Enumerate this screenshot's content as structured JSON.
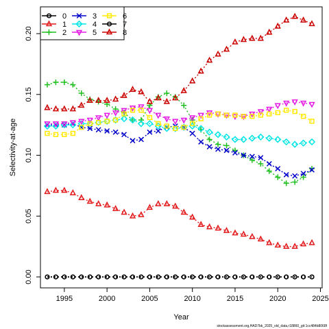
{
  "chart_data": {
    "type": "line",
    "xlabel": "Year",
    "ylabel": "Selectivity-at-age",
    "xlim": [
      1992.2,
      2025.2
    ],
    "ylim": [
      -0.009,
      0.222
    ],
    "x_ticks": [
      1995,
      2000,
      2005,
      2010,
      2015,
      2020,
      2025
    ],
    "x_tick_labels": [
      "1995",
      "2000",
      "2005",
      "2010",
      "2015",
      "2020",
      "2025"
    ],
    "y_ticks": [
      0.0,
      0.05,
      0.1,
      0.15,
      0.2
    ],
    "y_tick_labels": [
      "0.00",
      "0.05",
      "0.10",
      "0.15",
      "0.20"
    ],
    "legend_position": "top-left",
    "grid": false,
    "x": [
      1993,
      1994,
      1995,
      1996,
      1997,
      1998,
      1999,
      2000,
      2001,
      2002,
      2003,
      2004,
      2005,
      2006,
      2007,
      2008,
      2009,
      2010,
      2011,
      2012,
      2013,
      2014,
      2015,
      2016,
      2017,
      2018,
      2019,
      2020,
      2021,
      2022,
      2023,
      2024
    ],
    "series": [
      {
        "name": "0",
        "color": "#000000",
        "marker": "circle",
        "values": [
          0,
          0,
          0,
          0,
          0,
          0,
          0,
          0,
          0,
          0,
          0,
          0,
          0,
          0,
          0,
          0,
          0,
          0,
          0,
          0,
          0,
          0,
          0,
          0,
          0,
          0,
          0,
          0,
          0,
          0,
          0,
          0
        ]
      },
      {
        "name": "1",
        "color": "#e31a1c",
        "marker": "triangle-up",
        "values": [
          0.07,
          0.071,
          0.071,
          0.069,
          0.065,
          0.062,
          0.06,
          0.059,
          0.056,
          0.053,
          0.05,
          0.051,
          0.057,
          0.06,
          0.06,
          0.058,
          0.053,
          0.049,
          0.043,
          0.041,
          0.04,
          0.038,
          0.036,
          0.035,
          0.033,
          0.031,
          0.028,
          0.026,
          0.025,
          0.025,
          0.027,
          0.028
        ]
      },
      {
        "name": "2",
        "color": "#1fbf1f",
        "marker": "plus",
        "values": [
          0.158,
          0.16,
          0.16,
          0.158,
          0.151,
          0.146,
          0.144,
          0.142,
          0.138,
          0.135,
          0.129,
          0.129,
          0.141,
          0.148,
          0.151,
          0.148,
          0.141,
          0.129,
          0.121,
          0.113,
          0.109,
          0.108,
          0.104,
          0.1,
          0.096,
          0.093,
          0.087,
          0.082,
          0.077,
          0.078,
          0.082,
          0.089
        ]
      },
      {
        "name": "3",
        "color": "#0000cc",
        "marker": "cross",
        "values": [
          0.125,
          0.125,
          0.125,
          0.126,
          0.123,
          0.122,
          0.121,
          0.12,
          0.119,
          0.117,
          0.112,
          0.113,
          0.119,
          0.12,
          0.123,
          0.124,
          0.123,
          0.118,
          0.111,
          0.107,
          0.105,
          0.104,
          0.102,
          0.1,
          0.099,
          0.098,
          0.093,
          0.089,
          0.084,
          0.083,
          0.085,
          0.088
        ]
      },
      {
        "name": "4",
        "color": "#00e5e5",
        "marker": "diamond",
        "values": [
          0.124,
          0.124,
          0.125,
          0.125,
          0.126,
          0.126,
          0.127,
          0.128,
          0.129,
          0.13,
          0.129,
          0.126,
          0.126,
          0.124,
          0.122,
          0.122,
          0.123,
          0.124,
          0.122,
          0.119,
          0.117,
          0.115,
          0.113,
          0.113,
          0.114,
          0.115,
          0.114,
          0.113,
          0.111,
          0.109,
          0.11,
          0.111
        ]
      },
      {
        "name": "5",
        "color": "#e51ae5",
        "marker": "triangle-down",
        "values": [
          0.126,
          0.126,
          0.126,
          0.127,
          0.128,
          0.129,
          0.131,
          0.133,
          0.135,
          0.137,
          0.139,
          0.14,
          0.137,
          0.133,
          0.13,
          0.128,
          0.129,
          0.131,
          0.133,
          0.135,
          0.134,
          0.133,
          0.132,
          0.132,
          0.134,
          0.136,
          0.138,
          0.141,
          0.143,
          0.144,
          0.143,
          0.142
        ]
      },
      {
        "name": "6",
        "color": "#ffea00",
        "marker": "square",
        "values": [
          0.118,
          0.117,
          0.117,
          0.118,
          0.123,
          0.126,
          0.127,
          0.128,
          0.129,
          0.134,
          0.137,
          0.137,
          0.131,
          0.126,
          0.124,
          0.122,
          0.123,
          0.126,
          0.13,
          0.133,
          0.134,
          0.133,
          0.133,
          0.132,
          0.132,
          0.133,
          0.134,
          0.135,
          0.137,
          0.136,
          0.132,
          0.128
        ]
      },
      {
        "name": "7",
        "color": "#000000",
        "marker": "open-circle",
        "values": [
          0,
          0,
          0,
          0,
          0,
          0,
          0,
          0,
          0,
          0,
          0,
          0,
          0,
          0,
          0,
          0,
          0,
          0,
          0,
          0,
          0,
          0,
          0,
          0,
          0,
          0,
          0,
          0,
          0,
          0,
          0,
          0
        ]
      },
      {
        "name": "8",
        "color": "#cc0000",
        "marker": "triangle-up",
        "values": [
          0.139,
          0.138,
          0.138,
          0.138,
          0.141,
          0.145,
          0.145,
          0.145,
          0.146,
          0.149,
          0.154,
          0.152,
          0.144,
          0.147,
          0.144,
          0.147,
          0.153,
          0.161,
          0.169,
          0.178,
          0.183,
          0.187,
          0.193,
          0.195,
          0.196,
          0.196,
          0.201,
          0.206,
          0.211,
          0.214,
          0.211,
          0.208
        ]
      }
    ]
  },
  "footer_text": "stockassessment.org,HAD7bk_2025_old_data,r18860_git:1cc484b8068f"
}
